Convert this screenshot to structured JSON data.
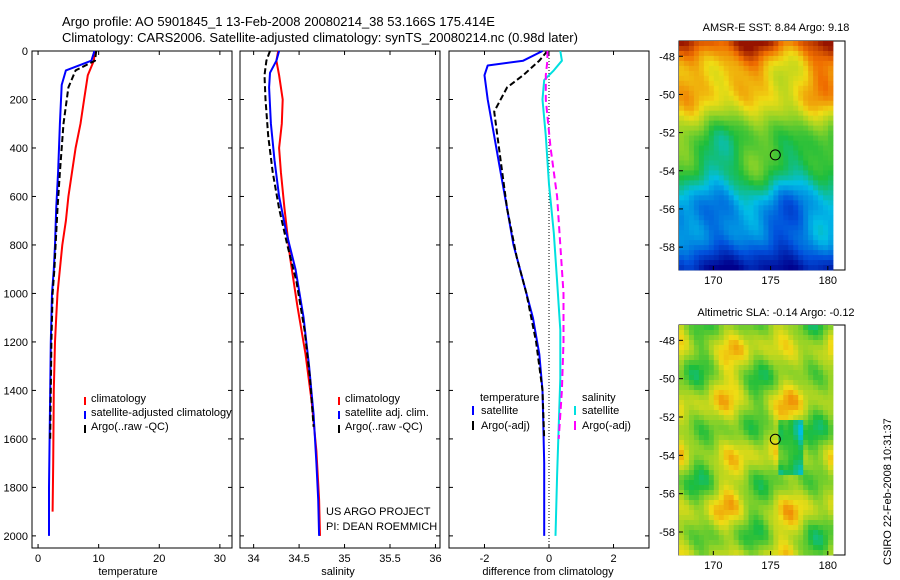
{
  "header": {
    "title_line1": "Argo profile: AO 5901845_1 13-Feb-2008 20080214_38 53.166S 175.414E",
    "title_line2": "Climatology: CARS2006. Satellite-adjusted climatology: synTS_20080214.nc (0.98d later)"
  },
  "side_label": "CSIRO 22-Feb-2008 10:31:37",
  "project_label": {
    "line1": "US ARGO PROJECT",
    "line2": "PI: DEAN ROEMMICH"
  },
  "colors": {
    "climatology": "#ff0000",
    "satellite": "#0000ff",
    "argo": "#000000",
    "sat_sal": "#00e0e0",
    "argo_sal_adj": "#ff00ff"
  },
  "chart_data": [
    {
      "id": "temperature",
      "type": "line",
      "xlabel": "temperature",
      "ylabel": "",
      "xlim": [
        -1,
        32
      ],
      "ylim": [
        2050,
        0
      ],
      "xticks": [
        0,
        10,
        20,
        30
      ],
      "yticks": [
        0,
        200,
        400,
        600,
        800,
        1000,
        1200,
        1400,
        1600,
        1800,
        2000
      ],
      "legend": [
        "climatology",
        "satellite-adjusted climatology",
        "Argo(..raw -QC)"
      ],
      "series": [
        {
          "name": "climatology",
          "color": "#ff0000",
          "width": 2,
          "dash": "",
          "x": [
            9.4,
            9.2,
            8.2,
            7.6,
            7.0,
            6.2,
            5.6,
            5.0,
            4.6,
            4.0,
            3.6,
            3.2,
            3.0,
            2.8,
            2.6,
            2.5,
            2.4
          ],
          "y": [
            0,
            40,
            100,
            200,
            300,
            400,
            500,
            600,
            700,
            800,
            900,
            1000,
            1100,
            1200,
            1400,
            1700,
            1900
          ]
        },
        {
          "name": "satellite-adjusted climatology",
          "color": "#0000ff",
          "width": 2,
          "dash": "",
          "x": [
            9.3,
            8.8,
            4.6,
            3.9,
            3.6,
            3.3,
            3.0,
            2.8,
            2.6,
            2.3,
            2.1,
            2.0,
            1.9,
            1.8,
            1.8
          ],
          "y": [
            0,
            40,
            80,
            140,
            300,
            500,
            650,
            800,
            900,
            1000,
            1200,
            1400,
            1600,
            1800,
            2000
          ]
        },
        {
          "name": "Argo(..raw -QC)",
          "color": "#000000",
          "width": 2,
          "dash": "6,3",
          "x": [
            9.6,
            9.4,
            6.2,
            5.0,
            4.2,
            3.6,
            3.2,
            2.9,
            2.7,
            2.4,
            2.2,
            2.1,
            2.0
          ],
          "y": [
            0,
            40,
            80,
            150,
            300,
            500,
            650,
            800,
            900,
            1000,
            1200,
            1400,
            1600
          ]
        }
      ]
    },
    {
      "id": "salinity",
      "type": "line",
      "xlabel": "salinity",
      "ylabel": "",
      "xlim": [
        33.85,
        36.05
      ],
      "ylim": [
        2050,
        0
      ],
      "xticks": [
        34,
        34.5,
        35,
        35.5,
        36
      ],
      "yticks": [
        0,
        200,
        400,
        600,
        800,
        1000,
        1200,
        1400,
        1600,
        1800,
        2000
      ],
      "legend": [
        "climatology",
        "satellite adj. clim.",
        "Argo(..raw -QC)"
      ],
      "series": [
        {
          "name": "climatology",
          "color": "#ff0000",
          "width": 2,
          "dash": "",
          "x": [
            34.27,
            34.25,
            34.28,
            34.32,
            34.31,
            34.28,
            34.3,
            34.34,
            34.4,
            34.48,
            34.57,
            34.64,
            34.69,
            34.72,
            34.73
          ],
          "y": [
            0,
            40,
            100,
            200,
            300,
            400,
            500,
            650,
            850,
            1050,
            1250,
            1450,
            1650,
            1850,
            2000
          ]
        },
        {
          "name": "satellite adj. clim.",
          "color": "#0000ff",
          "width": 2,
          "dash": "",
          "x": [
            34.28,
            34.25,
            34.18,
            34.17,
            34.19,
            34.23,
            34.28,
            34.36,
            34.46,
            34.55,
            34.61,
            34.66,
            34.69,
            34.71,
            34.72
          ],
          "y": [
            0,
            40,
            90,
            150,
            300,
            450,
            600,
            750,
            900,
            1100,
            1300,
            1500,
            1700,
            1850,
            2000
          ]
        },
        {
          "name": "Argo(..raw -QC)",
          "color": "#000000",
          "width": 2,
          "dash": "6,3",
          "x": [
            34.18,
            34.14,
            34.12,
            34.13,
            34.16,
            34.21,
            34.28,
            34.37,
            34.47,
            34.56,
            34.62,
            34.66
          ],
          "y": [
            0,
            40,
            100,
            200,
            350,
            500,
            650,
            800,
            950,
            1150,
            1350,
            1550
          ]
        }
      ]
    },
    {
      "id": "difference",
      "type": "line",
      "xlabel": "difference from climatology",
      "ylabel": "",
      "xlim": [
        -3.1,
        3.1
      ],
      "ylim": [
        2050,
        0
      ],
      "xticks": [
        -2,
        0,
        2
      ],
      "yticks": [
        0,
        200,
        400,
        600,
        800,
        1000,
        1200,
        1400,
        1600,
        1800,
        2000
      ],
      "legend_left_title": "temperature",
      "legend_right_title": "salinity",
      "legend": [
        "satellite",
        "Argo(-adj)",
        "satellite",
        "Argo(-adj)"
      ],
      "series": [
        {
          "name": "temperature satellite",
          "color": "#0000ff",
          "width": 2,
          "dash": "",
          "x": [
            -0.2,
            -0.8,
            -1.9,
            -2.0,
            -1.9,
            -1.7,
            -1.5,
            -1.3,
            -1.1,
            -0.8,
            -0.5,
            -0.3,
            -0.2,
            -0.15,
            -0.15
          ],
          "y": [
            0,
            40,
            60,
            100,
            200,
            350,
            500,
            650,
            800,
            950,
            1100,
            1250,
            1400,
            1700,
            2000
          ]
        },
        {
          "name": "temperature Argo(-adj)",
          "color": "#000000",
          "width": 2,
          "dash": "6,3",
          "x": [
            -0.05,
            -0.3,
            -0.8,
            -1.3,
            -1.7,
            -1.5,
            -1.3,
            -1.0,
            -0.7,
            -0.4,
            -0.2,
            -0.15
          ],
          "y": [
            0,
            40,
            100,
            150,
            250,
            450,
            650,
            850,
            1000,
            1200,
            1400,
            1600
          ]
        },
        {
          "name": "salinity satellite",
          "color": "#00e0e0",
          "width": 2,
          "dash": "",
          "x": [
            0.35,
            0.4,
            0.15,
            -0.15,
            -0.2,
            -0.1,
            0.0,
            0.15,
            0.25,
            0.35,
            0.35,
            0.3,
            0.25,
            0.2
          ],
          "y": [
            0,
            40,
            80,
            120,
            200,
            350,
            550,
            750,
            950,
            1150,
            1350,
            1550,
            1750,
            2000
          ]
        },
        {
          "name": "salinity Argo(-adj)",
          "color": "#ff00ff",
          "width": 2,
          "dash": "7,4",
          "x": [
            -0.05,
            -0.05,
            -0.1,
            -0.1,
            0.05,
            0.25,
            0.35,
            0.45,
            0.45,
            0.4,
            0.35,
            0.3
          ],
          "y": [
            0,
            40,
            100,
            200,
            400,
            600,
            800,
            1000,
            1200,
            1400,
            1500,
            1600
          ]
        }
      ]
    },
    {
      "id": "sst_map",
      "type": "heatmap",
      "title": "AMSR-E SST: 8.84 Argo: 9.18",
      "xlim": [
        167,
        181.5
      ],
      "ylim": [
        -59.2,
        -47.2
      ],
      "xticks": [
        170,
        175,
        180
      ],
      "yticks": [
        -48,
        -50,
        -52,
        -54,
        -56,
        -58
      ],
      "marker": {
        "lon": 175.414,
        "lat": -53.166
      }
    },
    {
      "id": "sla_map",
      "type": "heatmap",
      "title": "Altimetric SLA: -0.14 Argo: -0.12",
      "xlim": [
        167,
        181.5
      ],
      "ylim": [
        -59.2,
        -47.2
      ],
      "xticks": [
        170,
        175,
        180
      ],
      "yticks": [
        -48,
        -50,
        -52,
        -54,
        -56,
        -58
      ],
      "marker": {
        "lon": 175.414,
        "lat": -53.166
      }
    }
  ]
}
